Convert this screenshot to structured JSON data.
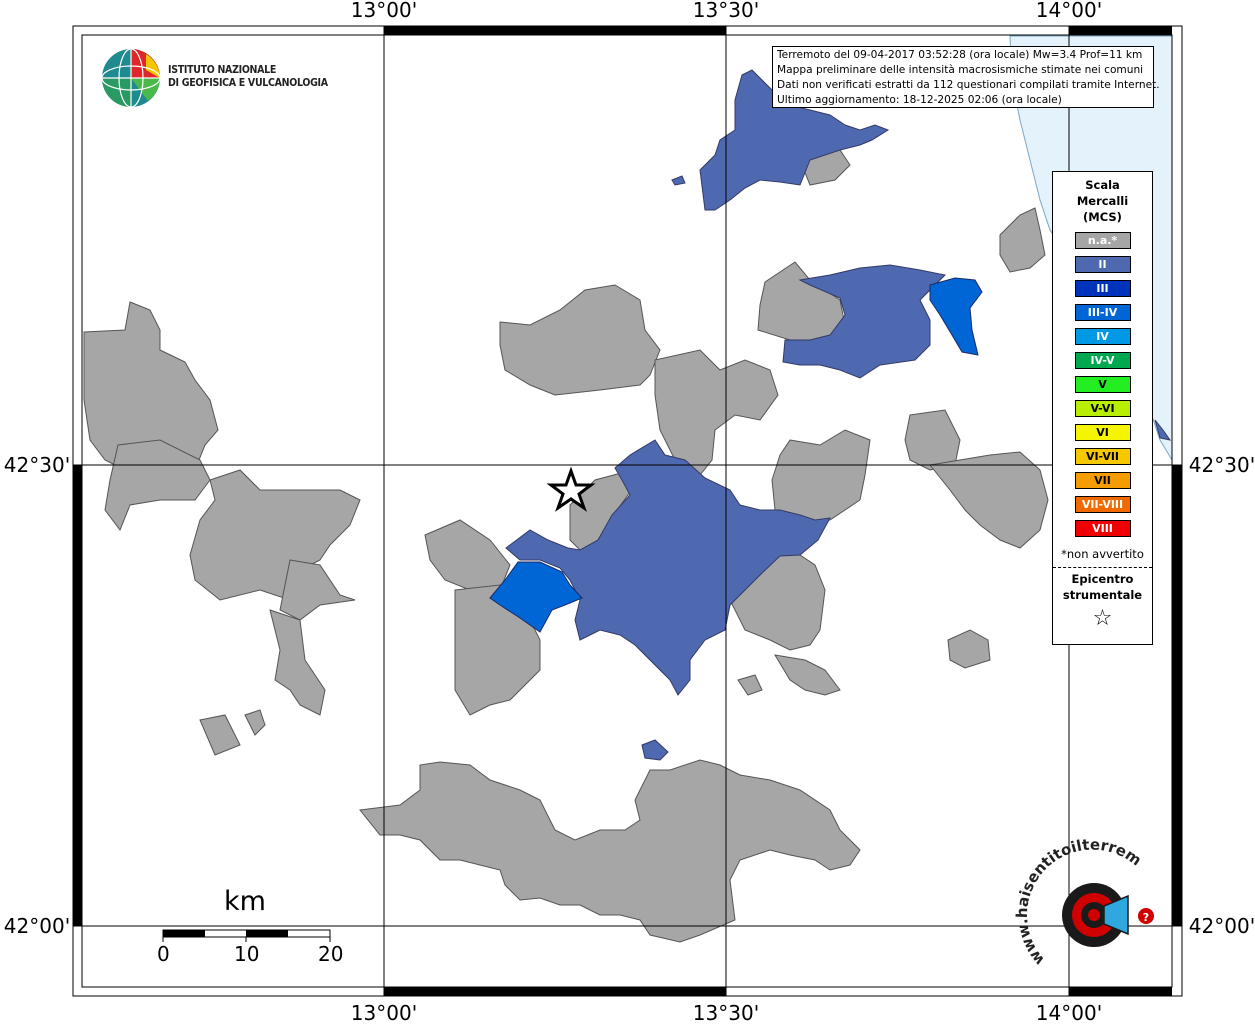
{
  "map": {
    "top_ticks": [
      "13°00'",
      "13°30'",
      "14°00'"
    ],
    "bottom_ticks": [
      "13°00'",
      "13°30'",
      "14°00'"
    ],
    "left_ticks": [
      "42°30'",
      "42°00'"
    ],
    "right_ticks": [
      "42°30'",
      "42°00'"
    ],
    "epicenter_marker": "star-icon"
  },
  "info_box": {
    "line1": "Terremoto del 09-04-2017 03:52:28 (ora locale) Mw=3.4 Prof=11 km",
    "line2": "Mappa preliminare delle intensità macrosismiche stimate nei comuni",
    "line3": "Dati non verificati estratti da 112 questionari compilati tramite Internet.",
    "line4": "Ultimo aggiornamento: 18-12-2025 02:06 (ora locale)"
  },
  "logo": {
    "line1": "ISTITUTO NAZIONALE",
    "line2": "DI GEOFISICA E VULCANOLOGIA",
    "icon": "globe-icon"
  },
  "legend": {
    "title_line1": "Scala",
    "title_line2": "Mercalli",
    "title_line3": "(MCS)",
    "items": [
      {
        "label": "n.a.*",
        "color": "#a6a6a6"
      },
      {
        "label": "II",
        "color": "#4f69b0"
      },
      {
        "label": "III",
        "color": "#0033bb"
      },
      {
        "label": "III-IV",
        "color": "#0066d6"
      },
      {
        "label": "IV",
        "color": "#0099e6"
      },
      {
        "label": "IV-V",
        "color": "#00a850"
      },
      {
        "label": "V",
        "color": "#22ee22"
      },
      {
        "label": "V-VI",
        "color": "#b8ee00"
      },
      {
        "label": "VI",
        "color": "#f5f500"
      },
      {
        "label": "VI-VII",
        "color": "#f5c800"
      },
      {
        "label": "VII",
        "color": "#f59c00"
      },
      {
        "label": "VII-VIII",
        "color": "#f06a00"
      },
      {
        "label": "VIII",
        "color": "#f00000"
      }
    ],
    "note": "*non avvertito",
    "epi_line1": "Epicentro",
    "epi_line2": "strumentale"
  },
  "scale_bar": {
    "unit": "km",
    "labels": [
      "0",
      "10",
      "20"
    ]
  },
  "watermark": {
    "text": "www.haisentitoilterremoto.it",
    "icon": "speaker-logo-icon"
  }
}
